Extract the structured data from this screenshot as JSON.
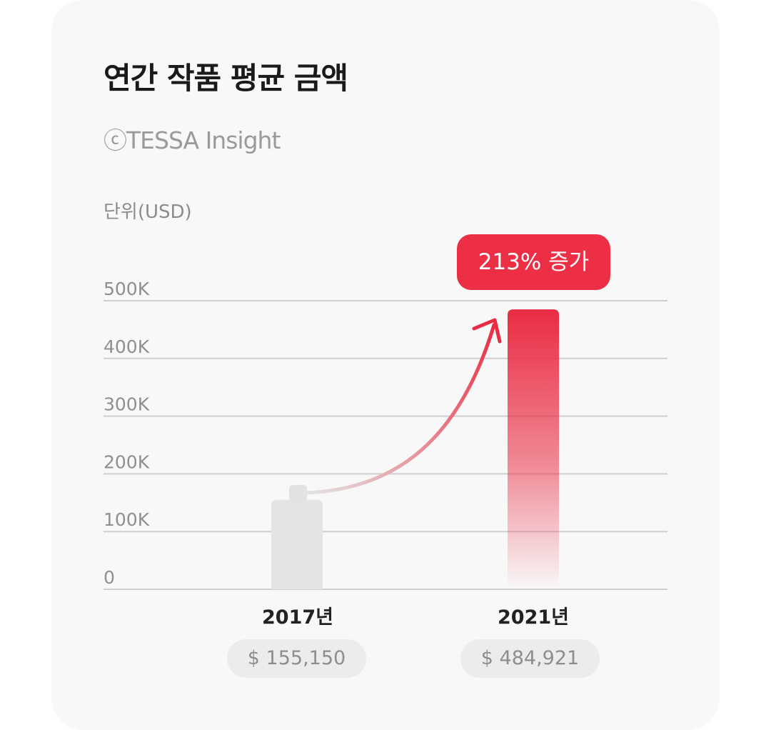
{
  "chart_data": {
    "type": "bar",
    "title": "연간 작품 평균 금액",
    "subtitle": "ⓒTESSA Insight",
    "ylabel": "단위(USD)",
    "categories": [
      "2017년",
      "2021년"
    ],
    "values": [
      155150,
      484921
    ],
    "value_labels": [
      "$ 155,150",
      "$ 484,921"
    ],
    "ylim": [
      0,
      500000
    ],
    "yticks": [
      0,
      100000,
      200000,
      300000,
      400000,
      500000
    ],
    "ytick_labels": [
      "0",
      "100K",
      "200K",
      "300K",
      "400K",
      "500K"
    ],
    "annotation": "213% 증가",
    "grid": true,
    "colors": {
      "bar_2017": "#e4e4e4",
      "bar_2021": "#ea2c43",
      "annotation_bg": "#ec2f45",
      "gridline": "#cfcfcf"
    }
  }
}
